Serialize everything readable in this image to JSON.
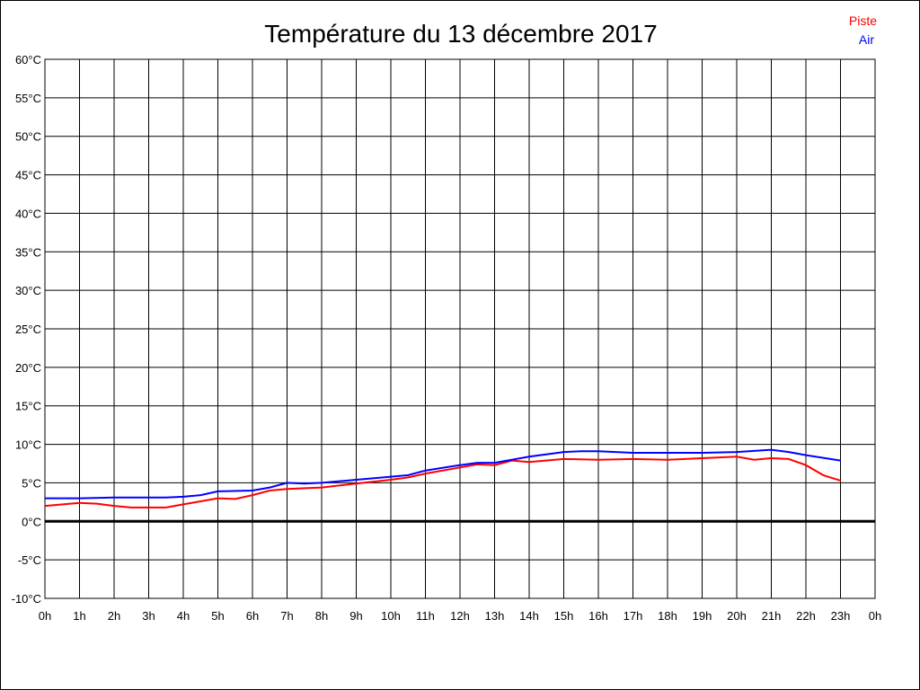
{
  "chart_data": {
    "type": "line",
    "title": "Température du 13 décembre 2017",
    "xlabel": "",
    "ylabel": "",
    "xlim": [
      0,
      24
    ],
    "ylim": [
      -10,
      60
    ],
    "grid": true,
    "legend_position": "top-right",
    "x_tick_labels": [
      "0h",
      "1h",
      "2h",
      "3h",
      "4h",
      "5h",
      "6h",
      "7h",
      "8h",
      "9h",
      "10h",
      "11h",
      "12h",
      "13h",
      "14h",
      "15h",
      "16h",
      "17h",
      "18h",
      "19h",
      "20h",
      "21h",
      "22h",
      "23h",
      "0h"
    ],
    "y_ticks": [
      -10,
      -5,
      0,
      5,
      10,
      15,
      20,
      25,
      30,
      35,
      40,
      45,
      50,
      55,
      60
    ],
    "y_tick_unit": "°C",
    "series": [
      {
        "name": "Piste",
        "color": "#ff0000",
        "x": [
          0,
          1,
          1.5,
          2,
          2.5,
          3,
          3.5,
          4,
          4.5,
          5,
          5.5,
          6,
          6.5,
          7,
          8,
          9,
          10,
          10.5,
          11,
          12,
          12.5,
          13,
          13.5,
          14,
          15,
          16,
          17,
          18,
          19,
          20,
          20.5,
          21,
          21.5,
          22,
          22.5,
          23
        ],
        "y": [
          2.0,
          2.4,
          2.3,
          2.0,
          1.8,
          1.8,
          1.8,
          2.2,
          2.6,
          3.0,
          2.9,
          3.4,
          4.0,
          4.2,
          4.4,
          4.9,
          5.4,
          5.7,
          6.2,
          7.0,
          7.4,
          7.3,
          7.9,
          7.7,
          8.1,
          8.0,
          8.1,
          8.0,
          8.2,
          8.4,
          8.0,
          8.2,
          8.1,
          7.3,
          6.0,
          5.3
        ]
      },
      {
        "name": "Air",
        "color": "#0000ff",
        "x": [
          0,
          1,
          2,
          3,
          3.5,
          4,
          4.5,
          5,
          6,
          6.5,
          7,
          7.5,
          8,
          9,
          10,
          10.5,
          11,
          12,
          12.5,
          13,
          14,
          15,
          15.5,
          16,
          17,
          18,
          19,
          20,
          21,
          21.5,
          22,
          23
        ],
        "y": [
          3.0,
          3.0,
          3.1,
          3.1,
          3.1,
          3.2,
          3.4,
          3.9,
          4.0,
          4.4,
          5.0,
          4.9,
          5.0,
          5.4,
          5.8,
          6.0,
          6.6,
          7.3,
          7.6,
          7.6,
          8.4,
          9.0,
          9.1,
          9.1,
          8.9,
          8.9,
          8.9,
          9.0,
          9.3,
          9.0,
          8.6,
          7.9
        ]
      }
    ]
  }
}
